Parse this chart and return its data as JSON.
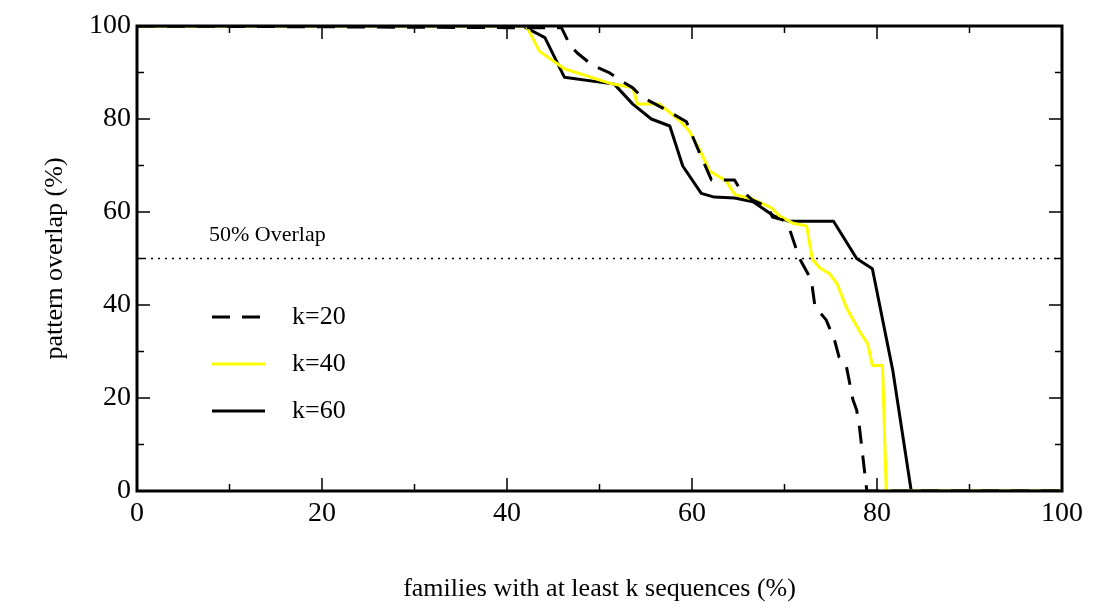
{
  "chart_data": {
    "type": "line",
    "xlabel": "families with at least k sequences (%)",
    "ylabel": "pattern overlap (%)",
    "xlim": [
      0,
      100
    ],
    "ylim": [
      0,
      100
    ],
    "xticks": [
      0,
      {
        "value": 10,
        "label": null
      },
      20,
      {
        "value": 30,
        "label": null
      },
      40,
      {
        "value": 50,
        "label": null
      },
      60,
      {
        "value": 70,
        "label": null
      },
      80,
      {
        "value": 90,
        "label": null
      },
      100
    ],
    "yticks": [
      0,
      {
        "value": 10,
        "label": null
      },
      20,
      {
        "value": 30,
        "label": null
      },
      40,
      {
        "value": 50,
        "label": null
      },
      60,
      {
        "value": 70,
        "label": null
      },
      80,
      {
        "value": 90,
        "label": null
      },
      100
    ],
    "grid": false,
    "legend": "bottom left",
    "marker": "none",
    "ref_lines": [
      {
        "axis": "y",
        "value": 50,
        "label": "50% Overlap",
        "line_style": "dotted",
        "color": "#000000"
      }
    ],
    "series": [
      {
        "name": "k=20",
        "color": "#000000",
        "line_style": "dashed",
        "x": [
          0,
          45.9,
          46.8,
          47.6,
          49.2,
          51.1,
          52.2,
          53.6,
          54.6,
          56.8,
          59.4,
          60.5,
          62.1,
          62.8,
          64.6,
          65.1,
          66.5,
          68.2,
          68.7,
          69.8,
          70.5,
          71.6,
          72.9,
          73.3,
          74.5,
          75.4,
          75.9,
          76.7,
          77.4,
          77.8,
          78.1,
          78.9,
          100
        ],
        "values": [
          100,
          99.6,
          95.9,
          94.2,
          91.6,
          89.9,
          88.4,
          86.7,
          84.7,
          82.4,
          79.4,
          74.2,
          66.9,
          66.9,
          66.9,
          65.2,
          62.6,
          61.1,
          58.9,
          58.3,
          56.6,
          50.1,
          45.4,
          39.6,
          36.8,
          32.5,
          28.8,
          26.7,
          19.6,
          17.4,
          13.8,
          0,
          0
        ]
      },
      {
        "name": "k=40",
        "color": "#ffff00",
        "line_style": "solid",
        "x": [
          0,
          42.1,
          43.5,
          46.2,
          51.1,
          53.6,
          54.1,
          56.5,
          58.7,
          59.7,
          60.8,
          61.9,
          63.7,
          64.6,
          66.5,
          68.6,
          69.5,
          70.9,
          72.4,
          73,
          73.8,
          74.9,
          75.7,
          76.7,
          78.1,
          79,
          79.5,
          80.6,
          81,
          100
        ],
        "values": [
          100,
          100,
          94.6,
          90.8,
          87.7,
          86.7,
          83.2,
          83.2,
          79.6,
          77.4,
          73.5,
          68.8,
          66.7,
          63.8,
          62.8,
          60.9,
          59.1,
          57.6,
          57,
          49.9,
          48,
          46.7,
          44.5,
          39.4,
          34.4,
          31.6,
          27,
          27,
          0,
          0
        ]
      },
      {
        "name": "k=60",
        "color": "#000000",
        "line_style": "solid",
        "x": [
          0,
          41.7,
          44.1,
          46.2,
          51.6,
          53.6,
          55.6,
          57.6,
          59,
          61,
          62.4,
          64.6,
          66.6,
          68.9,
          70.5,
          75.3,
          77.8,
          79.5,
          81.7,
          83.7,
          100
        ],
        "values": [
          100,
          100,
          97.5,
          89,
          87.5,
          83.2,
          80,
          78.5,
          69.9,
          64,
          63.2,
          63,
          62.2,
          59.1,
          58,
          58,
          50,
          47.8,
          26,
          0,
          0
        ]
      }
    ]
  }
}
